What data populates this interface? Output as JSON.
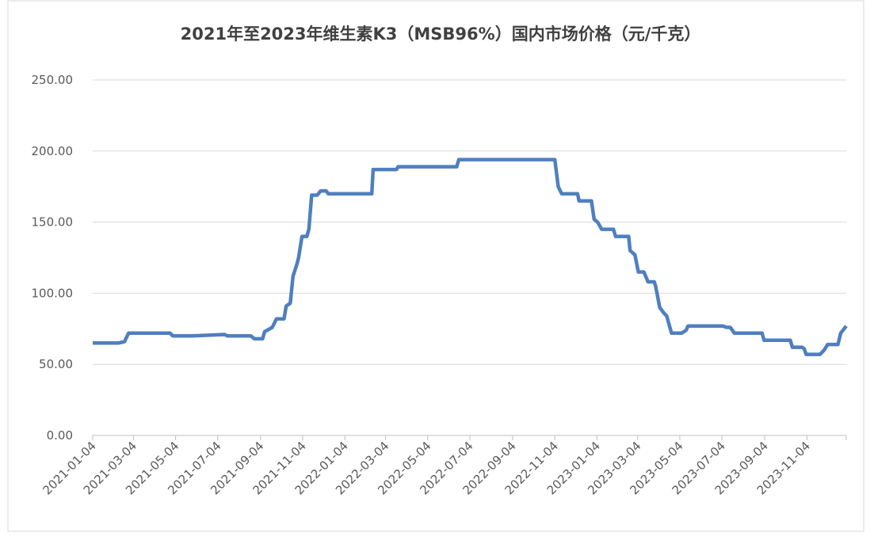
{
  "chart_data": {
    "type": "line",
    "title": "2021年至2023年维生素K3（MSB96%）国内市场价格（元/千克）",
    "x": [
      "2021-01-04",
      "2021-02-10",
      "2021-02-19",
      "2021-02-25",
      "2021-04-26",
      "2021-04-30",
      "2021-05-28",
      "2021-07-14",
      "2021-07-18",
      "2021-08-21",
      "2021-08-26",
      "2021-09-07",
      "2021-09-10",
      "2021-09-21",
      "2021-09-27",
      "2021-10-08",
      "2021-10-11",
      "2021-10-17",
      "2021-10-21",
      "2021-10-25",
      "2021-10-27",
      "2021-10-29",
      "2021-11-03",
      "2021-11-10",
      "2021-11-13",
      "2021-11-17",
      "2021-11-25",
      "2021-11-30",
      "2021-12-08",
      "2021-12-11",
      "2022-02-12",
      "2022-02-14",
      "2022-03-20",
      "2022-03-22",
      "2022-06-15",
      "2022-06-18",
      "2022-11-04",
      "2022-11-09",
      "2022-11-12",
      "2022-11-14",
      "2022-12-07",
      "2022-12-09",
      "2022-12-27",
      "2022-12-31",
      "2023-01-05",
      "2023-01-11",
      "2023-01-28",
      "2023-01-31",
      "2023-02-19",
      "2023-02-21",
      "2023-02-28",
      "2023-03-05",
      "2023-03-13",
      "2023-03-19",
      "2023-03-28",
      "2023-03-30",
      "2023-04-05",
      "2023-04-11",
      "2023-04-15",
      "2023-04-19",
      "2023-04-22",
      "2023-05-07",
      "2023-05-13",
      "2023-05-16",
      "2023-07-05",
      "2023-07-11",
      "2023-07-16",
      "2023-07-22",
      "2023-08-31",
      "2023-09-03",
      "2023-10-11",
      "2023-10-14",
      "2023-10-28",
      "2023-10-31",
      "2023-11-03",
      "2023-11-23",
      "2023-11-29",
      "2023-12-04",
      "2023-12-19",
      "2023-12-23",
      "2023-12-31"
    ],
    "series": [
      {
        "name": "维生素K3（MSB96%）",
        "color": "#4f7fbf",
        "values": [
          65,
          65,
          66,
          72,
          72,
          70,
          70,
          71,
          70,
          70,
          68,
          68,
          73,
          76,
          82,
          82,
          91,
          93,
          112,
          118,
          121,
          125,
          140,
          140,
          145,
          169,
          169,
          172,
          172,
          170,
          170,
          187,
          187,
          189,
          189,
          194,
          194,
          175,
          172,
          170,
          170,
          165,
          165,
          152,
          150,
          145,
          145,
          140,
          140,
          130,
          127,
          115,
          115,
          108,
          108,
          105,
          90,
          86,
          84,
          77,
          72,
          72,
          74,
          77,
          77,
          76,
          76,
          72,
          72,
          67,
          67,
          62,
          62,
          61,
          57,
          57,
          60,
          64,
          64,
          72,
          77
        ]
      }
    ],
    "xlim": [
      "2021-01-04",
      "2023-12-31"
    ],
    "xticks": [
      "2021-01-04",
      "2021-03-04",
      "2021-05-04",
      "2021-07-04",
      "2021-09-04",
      "2021-11-04",
      "2022-01-04",
      "2022-03-04",
      "2022-05-04",
      "2022-07-04",
      "2022-09-04",
      "2022-11-04",
      "2023-01-04",
      "2023-03-04",
      "2023-05-04",
      "2023-07-04",
      "2023-09-04",
      "2023-11-04"
    ],
    "ylim": [
      0,
      250
    ],
    "yticks": [
      {
        "value": 0,
        "label": "0.00"
      },
      {
        "value": 50,
        "label": "50.00"
      },
      {
        "value": 100,
        "label": "100.00"
      },
      {
        "value": 150,
        "label": "150.00"
      },
      {
        "value": 200,
        "label": "200.00"
      },
      {
        "value": 250,
        "label": "250.00"
      }
    ],
    "grid": true
  }
}
